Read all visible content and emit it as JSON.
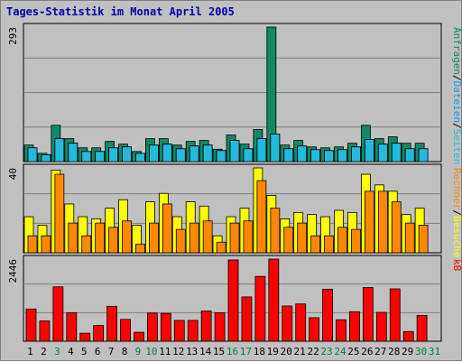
{
  "title": "Tages-Statistik im Monat April 2005",
  "colors": {
    "anfragen": "#118866",
    "dateien": "#1199ee",
    "seiten": "#22bbdd",
    "besuche": "#ffff00",
    "rechner": "#ff8800",
    "kb": "#ff0000",
    "weekday_label": "#000000",
    "weekend_label": "#008040",
    "panel_bg": "#c0c0c0"
  },
  "chart_data": [
    {
      "type": "bar",
      "panel": "hits",
      "categories": [
        "1",
        "2",
        "3",
        "4",
        "5",
        "6",
        "7",
        "8",
        "9",
        "10",
        "11",
        "12",
        "13",
        "14",
        "15",
        "16",
        "17",
        "18",
        "19",
        "20",
        "21",
        "22",
        "23",
        "24",
        "25",
        "26",
        "27",
        "28",
        "29",
        "30",
        "31"
      ],
      "weekend_days": [
        "3",
        "9",
        "10",
        "16",
        "17",
        "23",
        "24",
        "30",
        "31"
      ],
      "ymax_label": "293",
      "ylim": [
        0,
        293
      ],
      "series": [
        {
          "name": "Anfragen",
          "values": [
            36,
            18,
            79,
            50,
            30,
            30,
            44,
            38,
            22,
            50,
            50,
            36,
            44,
            46,
            27,
            58,
            38,
            70,
            293,
            36,
            46,
            32,
            30,
            32,
            40,
            79,
            50,
            54,
            40,
            40,
            0
          ]
        },
        {
          "name": "Dateien",
          "values": [
            30,
            15,
            50,
            40,
            22,
            22,
            30,
            32,
            18,
            36,
            38,
            28,
            34,
            36,
            24,
            46,
            28,
            50,
            60,
            28,
            34,
            26,
            24,
            26,
            32,
            48,
            38,
            40,
            28,
            28,
            0
          ]
        },
        {
          "name": "Seiten",
          "values": [
            30,
            15,
            50,
            40,
            22,
            22,
            30,
            32,
            18,
            36,
            38,
            28,
            34,
            36,
            24,
            46,
            28,
            50,
            60,
            28,
            34,
            26,
            24,
            26,
            32,
            48,
            38,
            40,
            28,
            28,
            0
          ]
        }
      ],
      "right_labels": [
        "Anfragen",
        "/",
        "Dateien",
        "/",
        "Seiten"
      ]
    },
    {
      "type": "bar",
      "panel": "visits",
      "categories": [
        "1",
        "2",
        "3",
        "4",
        "5",
        "6",
        "7",
        "8",
        "9",
        "10",
        "11",
        "12",
        "13",
        "14",
        "15",
        "16",
        "17",
        "18",
        "19",
        "20",
        "21",
        "22",
        "23",
        "24",
        "25",
        "26",
        "27",
        "28",
        "29",
        "30",
        "31"
      ],
      "ymax_label": "40",
      "ylim": [
        0,
        40
      ],
      "series": [
        {
          "name": "Besuche",
          "values": [
            17,
            13,
            39,
            23,
            17,
            16,
            21,
            25,
            13,
            24,
            28,
            17,
            24,
            22,
            8,
            17,
            21,
            40,
            27,
            16,
            19,
            18,
            17,
            20,
            19,
            37,
            32,
            29,
            18,
            21,
            0
          ]
        },
        {
          "name": "Rechner",
          "values": [
            8,
            8,
            37,
            14,
            8,
            14,
            12,
            15,
            4,
            14,
            23,
            11,
            14,
            15,
            5,
            14,
            15,
            34,
            21,
            12,
            14,
            8,
            8,
            12,
            11,
            29,
            29,
            24,
            14,
            13,
            0
          ]
        }
      ],
      "right_labels": [
        "Rechner",
        "/",
        "Besuche"
      ]
    },
    {
      "type": "bar",
      "panel": "kb",
      "categories": [
        "1",
        "2",
        "3",
        "4",
        "5",
        "6",
        "7",
        "8",
        "9",
        "10",
        "11",
        "12",
        "13",
        "14",
        "15",
        "16",
        "17",
        "18",
        "19",
        "20",
        "21",
        "22",
        "23",
        "24",
        "25",
        "26",
        "27",
        "28",
        "29",
        "30",
        "31"
      ],
      "ymax_label": "2446",
      "ylim": [
        0,
        2446
      ],
      "series": [
        {
          "name": "kB",
          "values": [
            960,
            607,
            1620,
            850,
            240,
            470,
            1040,
            650,
            266,
            840,
            830,
            620,
            620,
            900,
            850,
            2420,
            1320,
            1930,
            2446,
            1050,
            1110,
            700,
            1550,
            640,
            880,
            1600,
            860,
            1560,
            290,
            770,
            0
          ]
        }
      ],
      "right_labels": [
        "kB"
      ]
    }
  ]
}
